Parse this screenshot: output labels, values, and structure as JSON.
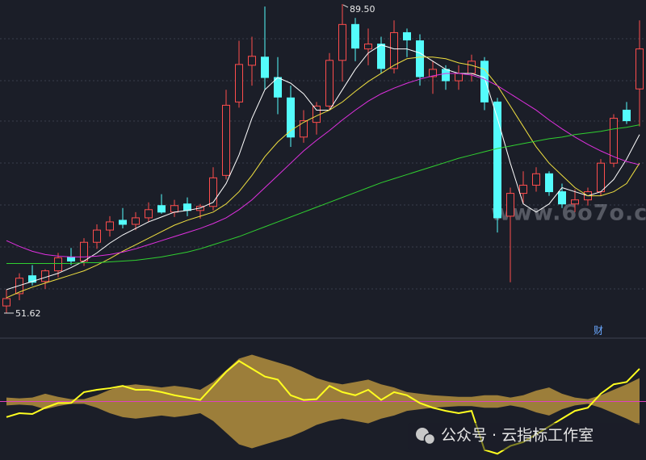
{
  "chart_data": [
    {
      "type": "candlestick",
      "ylim": [
        48.65,
        90.0
      ],
      "up_color": "#ff4d4d",
      "down_color": "#54fcfc",
      "open": [
        52.5,
        54.0,
        56.2,
        55.5,
        56.8,
        58.5,
        58.0,
        60.3,
        61.8,
        63.0,
        62.5,
        63.3,
        64.8,
        64.0,
        65.0,
        64.2,
        64.7,
        68.5,
        77.5,
        82.0,
        83.0,
        80.5,
        78.0,
        73.2,
        75.0,
        77.0,
        82.6,
        87.0,
        84.0,
        84.6,
        81.6,
        86.0,
        85.0,
        80.6,
        81.5,
        80.1,
        81.0,
        82.5,
        77.5,
        63.5,
        66.3,
        67.3,
        68.7,
        66.5,
        65.0,
        65.5,
        66.5,
        70.0,
        76.5,
        79.1
      ],
      "high": [
        54.5,
        56.5,
        57.5,
        57.0,
        59.0,
        59.6,
        60.8,
        62.5,
        63.5,
        64.5,
        64.0,
        65.2,
        66.2,
        65.5,
        65.8,
        65.0,
        69.5,
        79.0,
        85.0,
        85.5,
        89.2,
        83.0,
        79.5,
        76.5,
        77.5,
        83.5,
        89.5,
        87.8,
        86.5,
        85.5,
        87.5,
        86.5,
        85.8,
        82.5,
        82.0,
        82.0,
        83.3,
        83.0,
        78.0,
        67.0,
        69.0,
        69.5,
        69.0,
        67.5,
        66.8,
        67.0,
        70.5,
        76.0,
        77.5,
        87.5
      ],
      "low": [
        51.62,
        53.2,
        55.0,
        54.6,
        56.0,
        57.5,
        57.4,
        59.5,
        61.0,
        62.0,
        61.8,
        62.8,
        63.8,
        63.4,
        63.5,
        63.2,
        64.2,
        68.0,
        76.8,
        79.5,
        79.0,
        76.0,
        72.0,
        72.5,
        73.5,
        76.5,
        80.0,
        82.5,
        82.0,
        81.0,
        81.0,
        83.0,
        79.5,
        78.5,
        79.0,
        79.0,
        80.0,
        76.5,
        61.5,
        55.4,
        65.0,
        66.5,
        66.0,
        64.5,
        64.0,
        64.8,
        66.0,
        69.5,
        74.8,
        74.5
      ],
      "close": [
        53.4,
        55.9,
        55.4,
        56.8,
        58.4,
        58.0,
        60.3,
        61.8,
        62.8,
        62.5,
        63.3,
        64.3,
        64.0,
        64.8,
        64.2,
        64.7,
        68.2,
        77.1,
        82.1,
        83.1,
        80.5,
        78.1,
        73.2,
        75.2,
        77.0,
        82.6,
        87.0,
        84.1,
        84.6,
        81.6,
        86.0,
        85.1,
        80.6,
        81.5,
        80.1,
        81.0,
        82.5,
        77.5,
        63.3,
        66.3,
        67.3,
        68.7,
        66.5,
        65.0,
        65.5,
        66.5,
        70.0,
        75.5,
        75.2,
        84.0
      ],
      "series": [
        {
          "color": "#ffffff",
          "values": [
            54.5,
            55.0,
            55.5,
            56.0,
            56.5,
            57.2,
            58.0,
            59.0,
            60.2,
            61.2,
            62.0,
            62.8,
            63.4,
            64.0,
            64.2,
            64.5,
            65.2,
            67.5,
            71.0,
            75.5,
            79.0,
            80.5,
            79.8,
            78.5,
            76.5,
            76.5,
            79.0,
            81.5,
            83.5,
            84.5,
            84.0,
            84.0,
            83.5,
            82.5,
            81.5,
            81.0,
            81.0,
            80.5,
            75.5,
            70.0,
            65.0,
            64.0,
            65.0,
            67.0,
            66.5,
            66.0,
            66.5,
            68.0,
            70.5,
            73.5
          ]
        },
        {
          "color": "#f0e040",
          "values": [
            53.5,
            54.2,
            54.8,
            55.3,
            55.8,
            56.3,
            56.8,
            57.5,
            58.3,
            59.2,
            60.0,
            60.8,
            61.6,
            62.4,
            63.0,
            63.5,
            64.0,
            65.0,
            66.5,
            68.5,
            70.8,
            72.6,
            74.0,
            75.0,
            75.8,
            76.5,
            77.5,
            78.8,
            80.0,
            81.0,
            82.0,
            82.8,
            83.0,
            83.0,
            82.8,
            82.3,
            82.0,
            81.5,
            79.5,
            77.0,
            74.5,
            72.0,
            70.0,
            68.5,
            67.0,
            66.0,
            66.0,
            66.5,
            67.5,
            70.0
          ]
        },
        {
          "color": "#e030e0",
          "values": [
            60.5,
            59.8,
            59.2,
            58.8,
            58.6,
            58.5,
            58.5,
            58.6,
            58.8,
            59.1,
            59.5,
            60.0,
            60.5,
            61.0,
            61.5,
            62.0,
            62.6,
            63.3,
            64.3,
            65.5,
            67.0,
            68.5,
            70.0,
            71.5,
            72.8,
            74.0,
            75.3,
            76.5,
            77.6,
            78.5,
            79.2,
            79.8,
            80.3,
            80.7,
            81.0,
            81.0,
            80.8,
            80.3,
            79.5,
            78.5,
            77.5,
            76.5,
            75.3,
            74.2,
            73.2,
            72.3,
            71.5,
            70.8,
            70.2,
            69.8
          ]
        },
        {
          "color": "#30d030",
          "values": [
            57.7,
            57.7,
            57.7,
            57.7,
            57.7,
            57.7,
            57.8,
            57.8,
            57.9,
            58.0,
            58.1,
            58.3,
            58.5,
            58.8,
            59.1,
            59.5,
            60.0,
            60.5,
            61.0,
            61.6,
            62.2,
            62.8,
            63.4,
            64.0,
            64.6,
            65.2,
            65.8,
            66.4,
            67.0,
            67.6,
            68.1,
            68.6,
            69.1,
            69.6,
            70.1,
            70.6,
            71.0,
            71.4,
            71.8,
            72.1,
            72.4,
            72.7,
            73.0,
            73.2,
            73.5,
            73.7,
            73.9,
            74.2,
            74.4,
            74.7
          ]
        }
      ],
      "annotations": [
        {
          "text": "89.50",
          "value": 89.5,
          "x": 26
        },
        {
          "text": "51.62",
          "value": 51.62,
          "x": 0
        }
      ]
    },
    {
      "type": "indicator",
      "ylim": [
        -75,
        75
      ],
      "band": {
        "color": "#9c7e3a",
        "values": [
          5,
          4,
          5,
          10,
          6,
          3,
          3,
          8,
          15,
          20,
          22,
          20,
          18,
          20,
          18,
          15,
          25,
          40,
          55,
          60,
          55,
          50,
          45,
          38,
          30,
          25,
          22,
          25,
          28,
          22,
          18,
          12,
          10,
          8,
          7,
          6,
          6,
          8,
          8,
          5,
          8,
          14,
          18,
          10,
          5,
          3,
          8,
          15,
          22,
          30
        ]
      },
      "series": [
        {
          "color": "#ffff20",
          "values": [
            -20,
            -15,
            -16,
            -8,
            -2,
            -2,
            12,
            15,
            17,
            20,
            15,
            15,
            12,
            8,
            5,
            2,
            20,
            38,
            52,
            42,
            32,
            28,
            8,
            2,
            3,
            20,
            12,
            8,
            15,
            2,
            12,
            8,
            -2,
            -8,
            -12,
            -15,
            -12,
            -62,
            -67,
            -57,
            -52,
            -42,
            -32,
            -22,
            -12,
            -8,
            10,
            22,
            25,
            42
          ]
        }
      ]
    }
  ],
  "overlay": {
    "marker": "财",
    "watermark": "www.6o7o.com",
    "caption": "公众号 · 云指标工作室"
  }
}
